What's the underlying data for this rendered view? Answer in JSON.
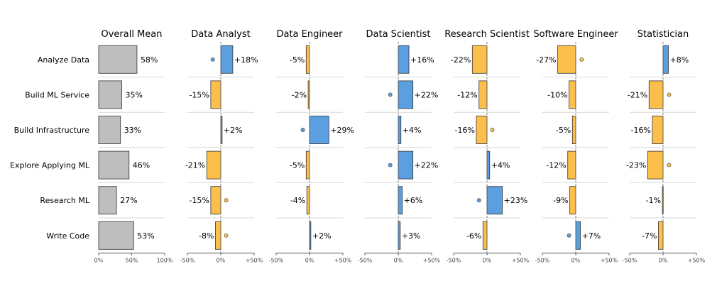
{
  "chart_data": {
    "type": "bar",
    "layout": "small-multiples",
    "categories": [
      "Analyze Data",
      "Build ML Service",
      "Build Infrastructure",
      "Explore Applying ML",
      "Research ML",
      "Write Code"
    ],
    "colors": {
      "overall": "#bebebe",
      "positive": "#5b9fe0",
      "negative": "#fdbf4c",
      "edge": "#333333",
      "grid": "#d9d9d9"
    },
    "overall": {
      "title": "Overall Mean",
      "values": [
        58,
        35,
        33,
        46,
        27,
        53
      ],
      "labels": [
        "58%",
        "35%",
        "33%",
        "46%",
        "27%",
        "53%"
      ],
      "xlim": [
        0,
        100
      ],
      "ticks": [
        "0%",
        "50%",
        "100%"
      ]
    },
    "diff_xlim": [
      -50,
      50
    ],
    "diff_ticks": [
      "-50%",
      "0%",
      "+50%"
    ],
    "panels": [
      {
        "title": "Data Analyst",
        "values": [
          18,
          -15,
          2,
          -21,
          -15,
          -8
        ],
        "labels": [
          "+18%",
          "-15%",
          "+2%",
          "-21%",
          "-15%",
          "-8%"
        ],
        "dots": [
          -12,
          null,
          null,
          null,
          8,
          8
        ]
      },
      {
        "title": "Data Engineer",
        "values": [
          -5,
          -2,
          29,
          -5,
          -4,
          2
        ],
        "labels": [
          "-5%",
          "-2%",
          "+29%",
          "-5%",
          "-4%",
          "+2%"
        ],
        "dots": [
          null,
          null,
          -10,
          null,
          null,
          null
        ]
      },
      {
        "title": "Data Scientist",
        "values": [
          16,
          22,
          4,
          22,
          6,
          3
        ],
        "labels": [
          "+16%",
          "+22%",
          "+4%",
          "+22%",
          "+6%",
          "+3%"
        ],
        "dots": [
          null,
          -12,
          null,
          -12,
          null,
          null
        ]
      },
      {
        "title": "Research Scientist",
        "values": [
          -22,
          -12,
          -16,
          4,
          23,
          -6
        ],
        "labels": [
          "-22%",
          "-12%",
          "-16%",
          "+4%",
          "+23%",
          "-6%"
        ],
        "dots": [
          null,
          null,
          8,
          null,
          -12,
          null
        ]
      },
      {
        "title": "Software Engineer",
        "values": [
          -27,
          -10,
          -5,
          -12,
          -9,
          7
        ],
        "labels": [
          "-27%",
          "-10%",
          "-5%",
          "-12%",
          "-9%",
          "+7%"
        ],
        "dots": [
          9,
          null,
          null,
          null,
          null,
          -10
        ]
      },
      {
        "title": "Statistician",
        "values": [
          8,
          -21,
          -16,
          -23,
          -1,
          -7
        ],
        "labels": [
          "+8%",
          "-21%",
          "-16%",
          "-23%",
          "-1%",
          "-7%"
        ],
        "dots": [
          null,
          9,
          null,
          9,
          null,
          null
        ]
      }
    ]
  }
}
